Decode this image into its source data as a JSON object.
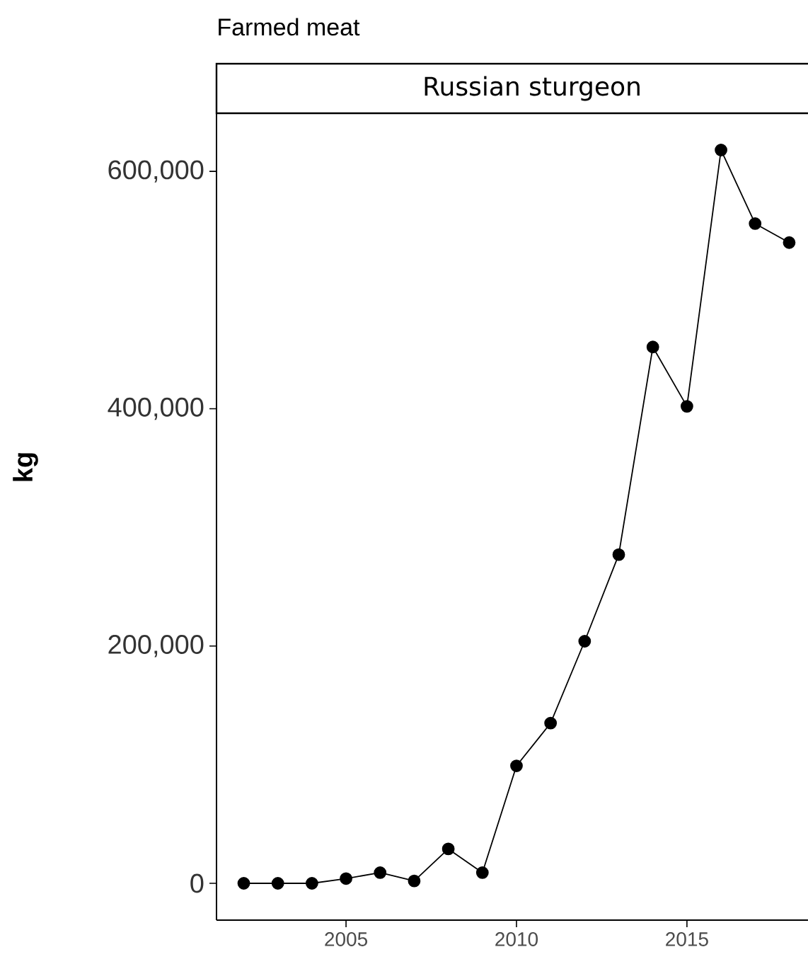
{
  "chart_data": {
    "type": "line",
    "title": "Farmed meat",
    "subtitle": "Russian sturgeon",
    "ylabel": "kg",
    "x": [
      2002,
      2003,
      2004,
      2005,
      2006,
      2007,
      2008,
      2009,
      2010,
      2011,
      2012,
      2013,
      2014,
      2015,
      2016,
      2017,
      2018
    ],
    "series": [
      {
        "color": "#000000",
        "values": [
          0,
          0,
          0,
          4000,
          9000,
          2000,
          29000,
          9000,
          99000,
          135000,
          204000,
          277000,
          452000,
          402000,
          618000,
          556000,
          540000
        ]
      }
    ],
    "xlim": [
      2001.2,
      2018.8
    ],
    "ylim": [
      -31000,
      649000
    ],
    "xticks": [
      2005,
      2010,
      2015
    ],
    "yticks": [
      0,
      {
        "value": 200000,
        "label": "200,000"
      },
      {
        "value": 400000,
        "label": "400,000"
      },
      {
        "value": 600000,
        "label": "600,000"
      }
    ],
    "marker": "circle",
    "line_style": "solid"
  }
}
